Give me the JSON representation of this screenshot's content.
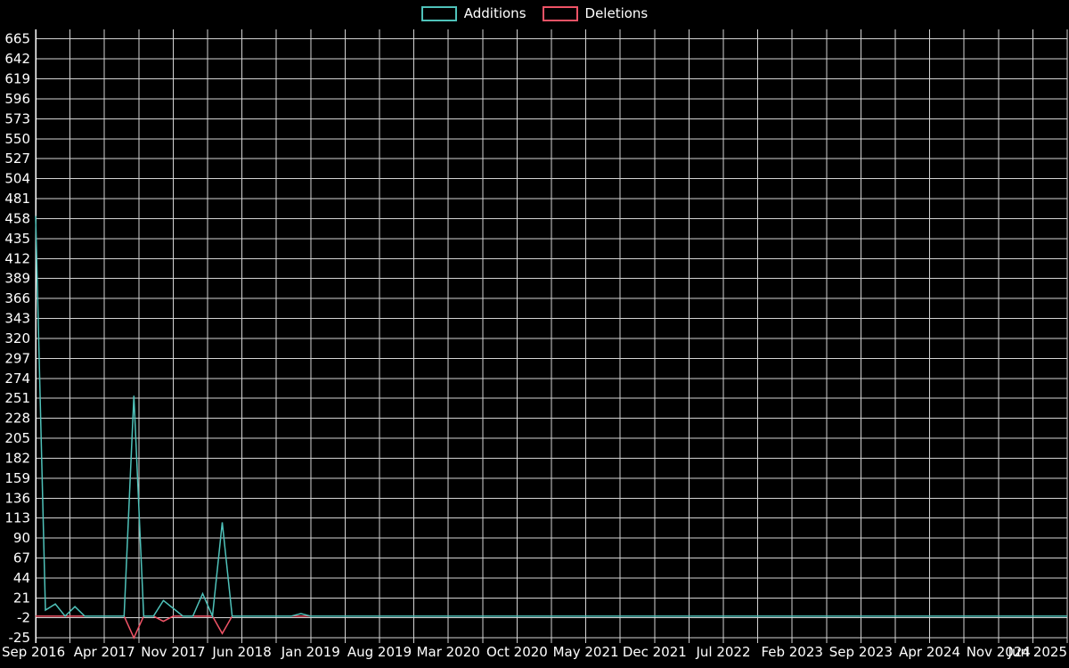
{
  "page": {
    "background": "#000000",
    "text_color": "#ffffff"
  },
  "legend": {
    "items": [
      {
        "label": "Additions",
        "color": "#4fc2ba"
      },
      {
        "label": "Deletions",
        "color": "#ef5366"
      }
    ]
  },
  "chart_data": {
    "type": "line",
    "title": "",
    "xlabel": "",
    "ylabel": "",
    "legend_position": "top-center",
    "grid": {
      "on": true,
      "color": "#d4d4d4",
      "vertical_step_months": 3.5
    },
    "axis_color": "#ffffff",
    "months_total": 106,
    "x_tick_labels": [
      "Sep 2016",
      "Apr 2017",
      "Nov 2017",
      "Jun 2018",
      "Jan 2019",
      "Aug 2019",
      "Mar 2020",
      "Oct 2020",
      "May 2021",
      "Dec 2021",
      "Jul 2022",
      "Feb 2023",
      "Sep 2023",
      "Apr 2024",
      "Nov 2024",
      "Jun 2025"
    ],
    "x_tick_month_indices": [
      0,
      7,
      14,
      21,
      28,
      35,
      42,
      49,
      56,
      63,
      70,
      77,
      84,
      91,
      98,
      105
    ],
    "y_ticks": {
      "min": -25,
      "max": 665,
      "step": 23
    },
    "plot_range": {
      "y_min": -31,
      "y_max": 676
    },
    "series": [
      {
        "name": "Additions",
        "color": "#4fc2ba",
        "baseline": 0,
        "nonzero_points_by_month_index": {
          "0": 461,
          "1": 7,
          "2": 14,
          "4": 11,
          "10": 254,
          "13": 18,
          "14": 9,
          "17": 26,
          "19": 108,
          "27": 3
        }
      },
      {
        "name": "Deletions",
        "color": "#ef5366",
        "baseline": 0,
        "nonzero_points_by_month_index": {
          "10": -25,
          "13": -6,
          "19": -20
        }
      }
    ]
  }
}
